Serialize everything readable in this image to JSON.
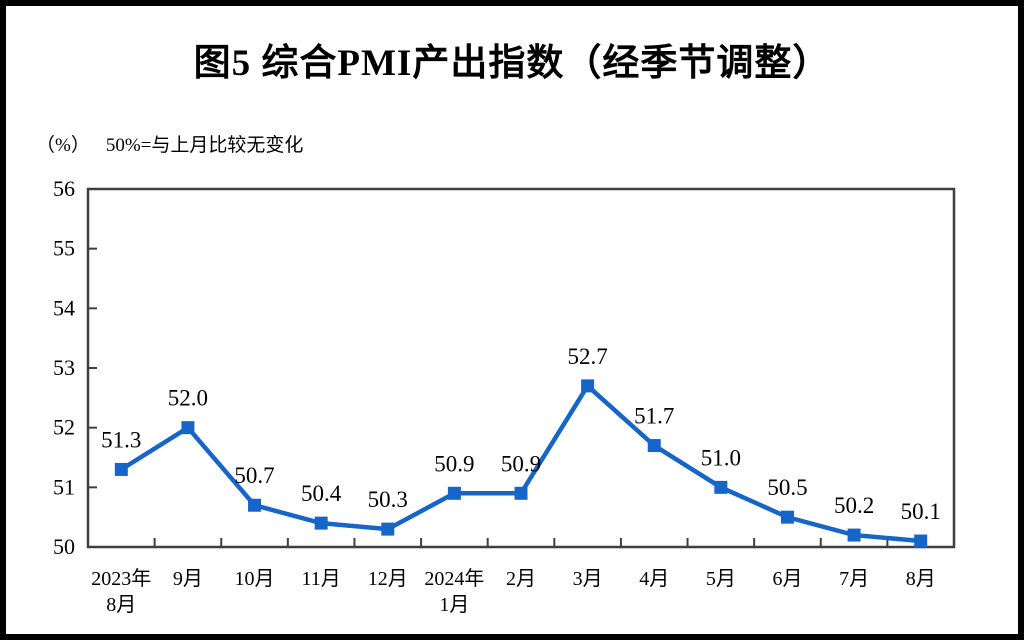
{
  "figure": {
    "title": "图5  综合PMI产出指数（经季节调整）",
    "unit_label": "（%）",
    "note": "50%=与上月比较无变化"
  },
  "chart_data": {
    "type": "line",
    "title": "图5  综合PMI产出指数（经季节调整）",
    "subtitle_note": "（%） 50%=与上月比较无变化",
    "categories": [
      "2023年\n8月",
      "9月",
      "10月",
      "11月",
      "12月",
      "2024年\n1月",
      "2月",
      "3月",
      "4月",
      "5月",
      "6月",
      "7月",
      "8月"
    ],
    "values": [
      51.3,
      52.0,
      50.7,
      50.4,
      50.3,
      50.9,
      50.9,
      52.7,
      51.7,
      51.0,
      50.5,
      50.2,
      50.1
    ],
    "labels": [
      "51.3",
      "52.0",
      "50.7",
      "50.4",
      "50.3",
      "50.9",
      "50.9",
      "52.7",
      "51.7",
      "51.0",
      "50.5",
      "50.2",
      "50.1"
    ],
    "ylim": [
      50,
      56
    ],
    "yticks": [
      50,
      51,
      52,
      53,
      54,
      55,
      56
    ],
    "xlabel": "",
    "ylabel": "",
    "grid": false,
    "legend": "none",
    "marker": "square",
    "line_color": "#1666C9",
    "axis_color": "#3F3F3F",
    "text_color": "#000000"
  }
}
